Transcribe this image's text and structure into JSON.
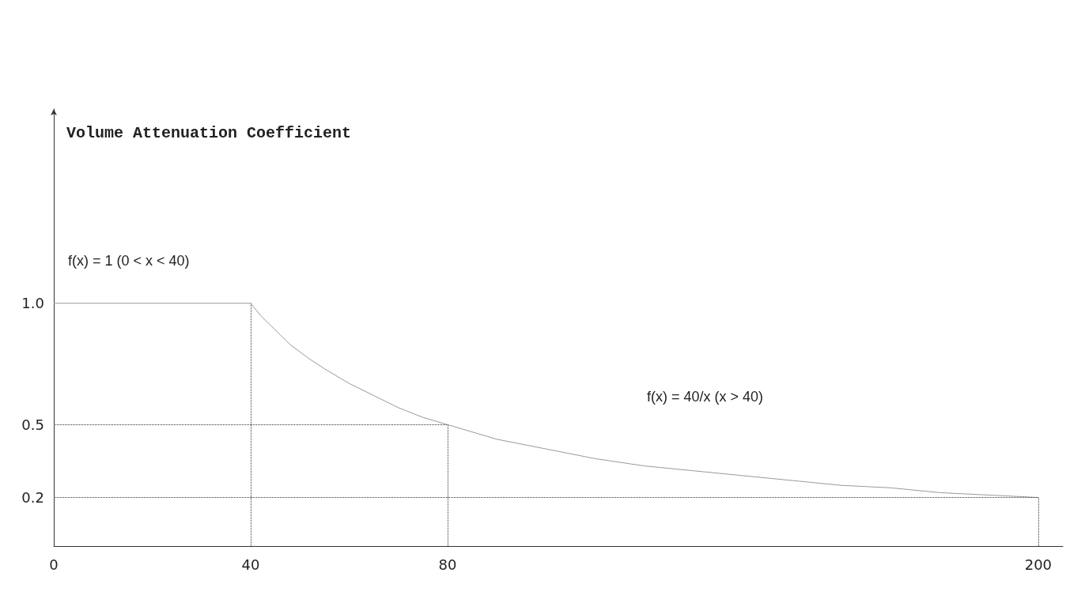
{
  "chart_data": {
    "type": "line",
    "ylabel": "Volume Attenuation Coefficient",
    "x": [
      0,
      40,
      42,
      44,
      46,
      48,
      50,
      52,
      55,
      60,
      65,
      70,
      75,
      80,
      90,
      100,
      110,
      120,
      130,
      140,
      150,
      160,
      170,
      180,
      190,
      200
    ],
    "series": [
      {
        "color": "#999999",
        "values": [
          1,
          1,
          0.95,
          0.91,
          0.87,
          0.83,
          0.8,
          0.77,
          0.73,
          0.67,
          0.62,
          0.57,
          0.53,
          0.5,
          0.44,
          0.4,
          0.36,
          0.33,
          0.31,
          0.29,
          0.27,
          0.25,
          0.24,
          0.22,
          0.21,
          0.2
        ]
      }
    ],
    "xlim": [
      0,
      205
    ],
    "xticks": [
      0,
      40,
      80,
      200
    ],
    "ylim": [
      0,
      1.8
    ],
    "yticks": [
      0.2,
      0.5,
      {
        "value": 1,
        "label": "1.0"
      }
    ],
    "ref_lines": [
      {
        "axis": "x",
        "value": 40,
        "line_style": "dotted",
        "color": "#333333"
      },
      {
        "axis": "x",
        "value": 80,
        "line_style": "dotted",
        "color": "#333333"
      },
      {
        "axis": "x",
        "value": 200,
        "line_style": "dotted",
        "color": "#333333"
      },
      {
        "axis": "y",
        "value": 0.5,
        "line_style": "dotted",
        "color": "#333333"
      },
      {
        "axis": "y",
        "value": 0.2,
        "line_style": "dotted",
        "color": "#333333"
      }
    ],
    "annotations": [
      "f(x) = 1 (0 < x < 40)",
      "f(x) = 40/x (x > 40)"
    ],
    "grid": false,
    "marker": "none",
    "line_style": "solid"
  }
}
